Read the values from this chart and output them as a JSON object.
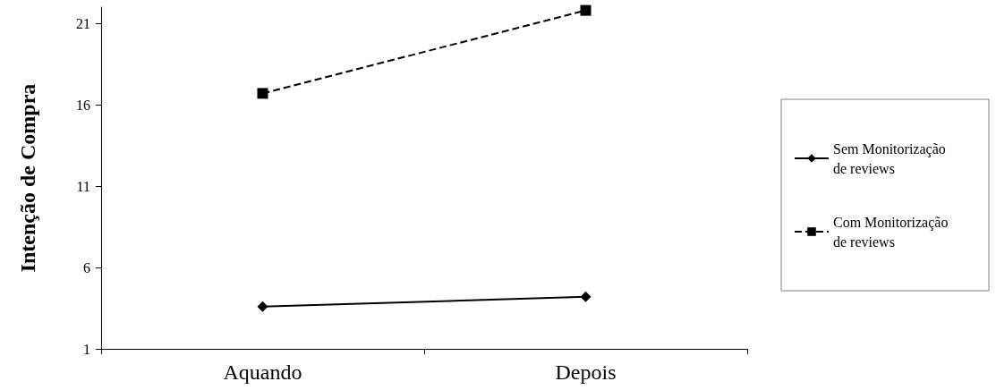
{
  "chart_data": {
    "type": "line",
    "ylabel": "Intenção de Compra",
    "categories": [
      "Aquando",
      "Depois"
    ],
    "series": [
      {
        "name": "Sem Monitorização de reviews",
        "color": "#000000",
        "values": [
          3.6,
          4.2
        ],
        "marker": "diamond",
        "line_style": "solid"
      },
      {
        "name": "Com Monitorização de reviews",
        "color": "#000000",
        "values": [
          16.7,
          21.8
        ],
        "marker": "square",
        "line_style": "dashed"
      }
    ],
    "ylim": [
      1,
      22
    ],
    "yticks": [
      1,
      6,
      11,
      16,
      21
    ],
    "grid": false,
    "legend": "right"
  }
}
